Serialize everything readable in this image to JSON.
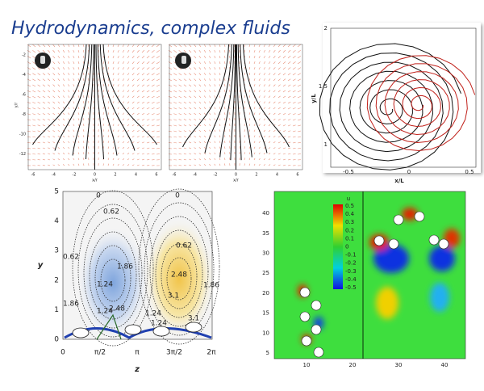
{
  "title": "Hydrodynamics, complex fluids",
  "panels": [
    {
      "xticks": [
        "-6",
        "-4",
        "-2",
        "0",
        "2",
        "4",
        "6"
      ],
      "yticks": [
        "-2",
        "-4",
        "-6",
        "-8",
        "-10",
        "-12"
      ],
      "xlabel": "x/r",
      "ylabel": "y/r"
    },
    {
      "xticks": [
        "-6",
        "-4",
        "-2",
        "0",
        "2",
        "4",
        "6"
      ],
      "xlabel": "x/r"
    },
    {
      "xticks": [
        "-0.5",
        "0",
        "0.5"
      ],
      "yticks": [
        "2",
        "1.5",
        "1"
      ],
      "xlabel": "x/L",
      "ylabel": "y/L"
    },
    {
      "xticks": [
        "0",
        "π/2",
        "π",
        "3π/2",
        "2π"
      ],
      "yticks": [
        "0",
        "1",
        "2",
        "3",
        "4",
        "5"
      ],
      "xlabel": "z",
      "ylabel": "y",
      "contour_labels": [
        "0",
        "0",
        "0.62",
        "0.62",
        "0.62",
        "1.86",
        "1.86",
        "1.24",
        "1.24",
        "2.48",
        "3.1",
        "1.86",
        "1.24",
        "2.48",
        "1.24",
        "3.1"
      ]
    },
    {
      "xticks": [
        "10",
        "20",
        "30",
        "40"
      ],
      "yticks": [
        "5",
        "10",
        "15",
        "20",
        "25",
        "30",
        "35",
        "40"
      ],
      "colorbar_title": "u",
      "colorbar_ticks": [
        "0.5",
        "0.4",
        "0.3",
        "0.2",
        "0.1",
        "0",
        "-0.1",
        "-0.2",
        "-0.3",
        "-0.4",
        "-0.5"
      ]
    }
  ]
}
